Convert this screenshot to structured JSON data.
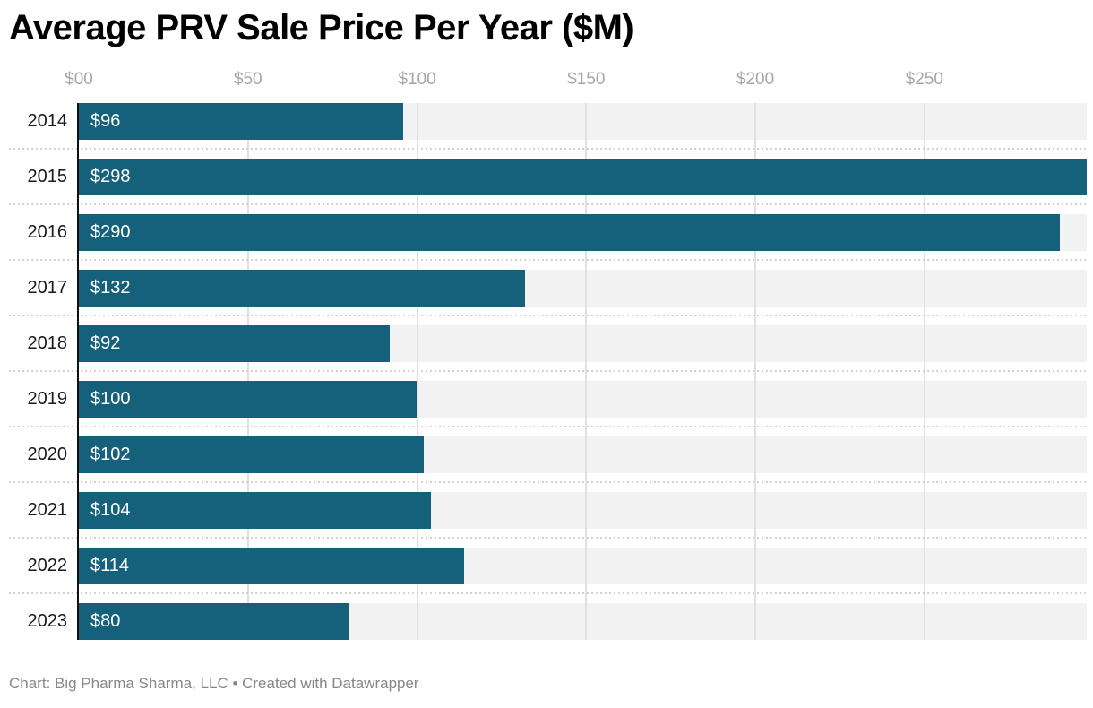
{
  "header": {
    "title": "Average PRV Sale Price Per Year ($M)"
  },
  "footer": {
    "text": "Chart: Big Pharma Sharma, LLC • Created with Datawrapper"
  },
  "chart_data": {
    "type": "bar",
    "orientation": "horizontal",
    "title": "Average PRV Sale Price Per Year ($M)",
    "categories": [
      "2014",
      "2015",
      "2016",
      "2017",
      "2018",
      "2019",
      "2020",
      "2021",
      "2022",
      "2023"
    ],
    "values": [
      96,
      298,
      290,
      132,
      92,
      100,
      102,
      104,
      114,
      80
    ],
    "value_labels": [
      "$96",
      "$298",
      "$290",
      "$132",
      "$92",
      "$100",
      "$102",
      "$104",
      "$114",
      "$80"
    ],
    "xlabel": "",
    "ylabel": "",
    "xlim": [
      0,
      298
    ],
    "x_ticks": [
      {
        "value": 0,
        "label": "$00"
      },
      {
        "value": 50,
        "label": "$50"
      },
      {
        "value": 100,
        "label": "$100"
      },
      {
        "value": 150,
        "label": "$150"
      },
      {
        "value": 200,
        "label": "$200"
      },
      {
        "value": 250,
        "label": "$250"
      }
    ],
    "grid": "vertical",
    "legend": "none",
    "colors": {
      "bar": "#15607a",
      "track": "#f2f2f2",
      "gridline": "#e0e0e0",
      "separator_dots": "#d2d2d2",
      "axis_line": "#121212",
      "bar_label": "#ffffff",
      "category_label": "#1a1a1a",
      "tick_label": "#a6a6a6",
      "title": "#000000",
      "footer": "#878787"
    }
  }
}
